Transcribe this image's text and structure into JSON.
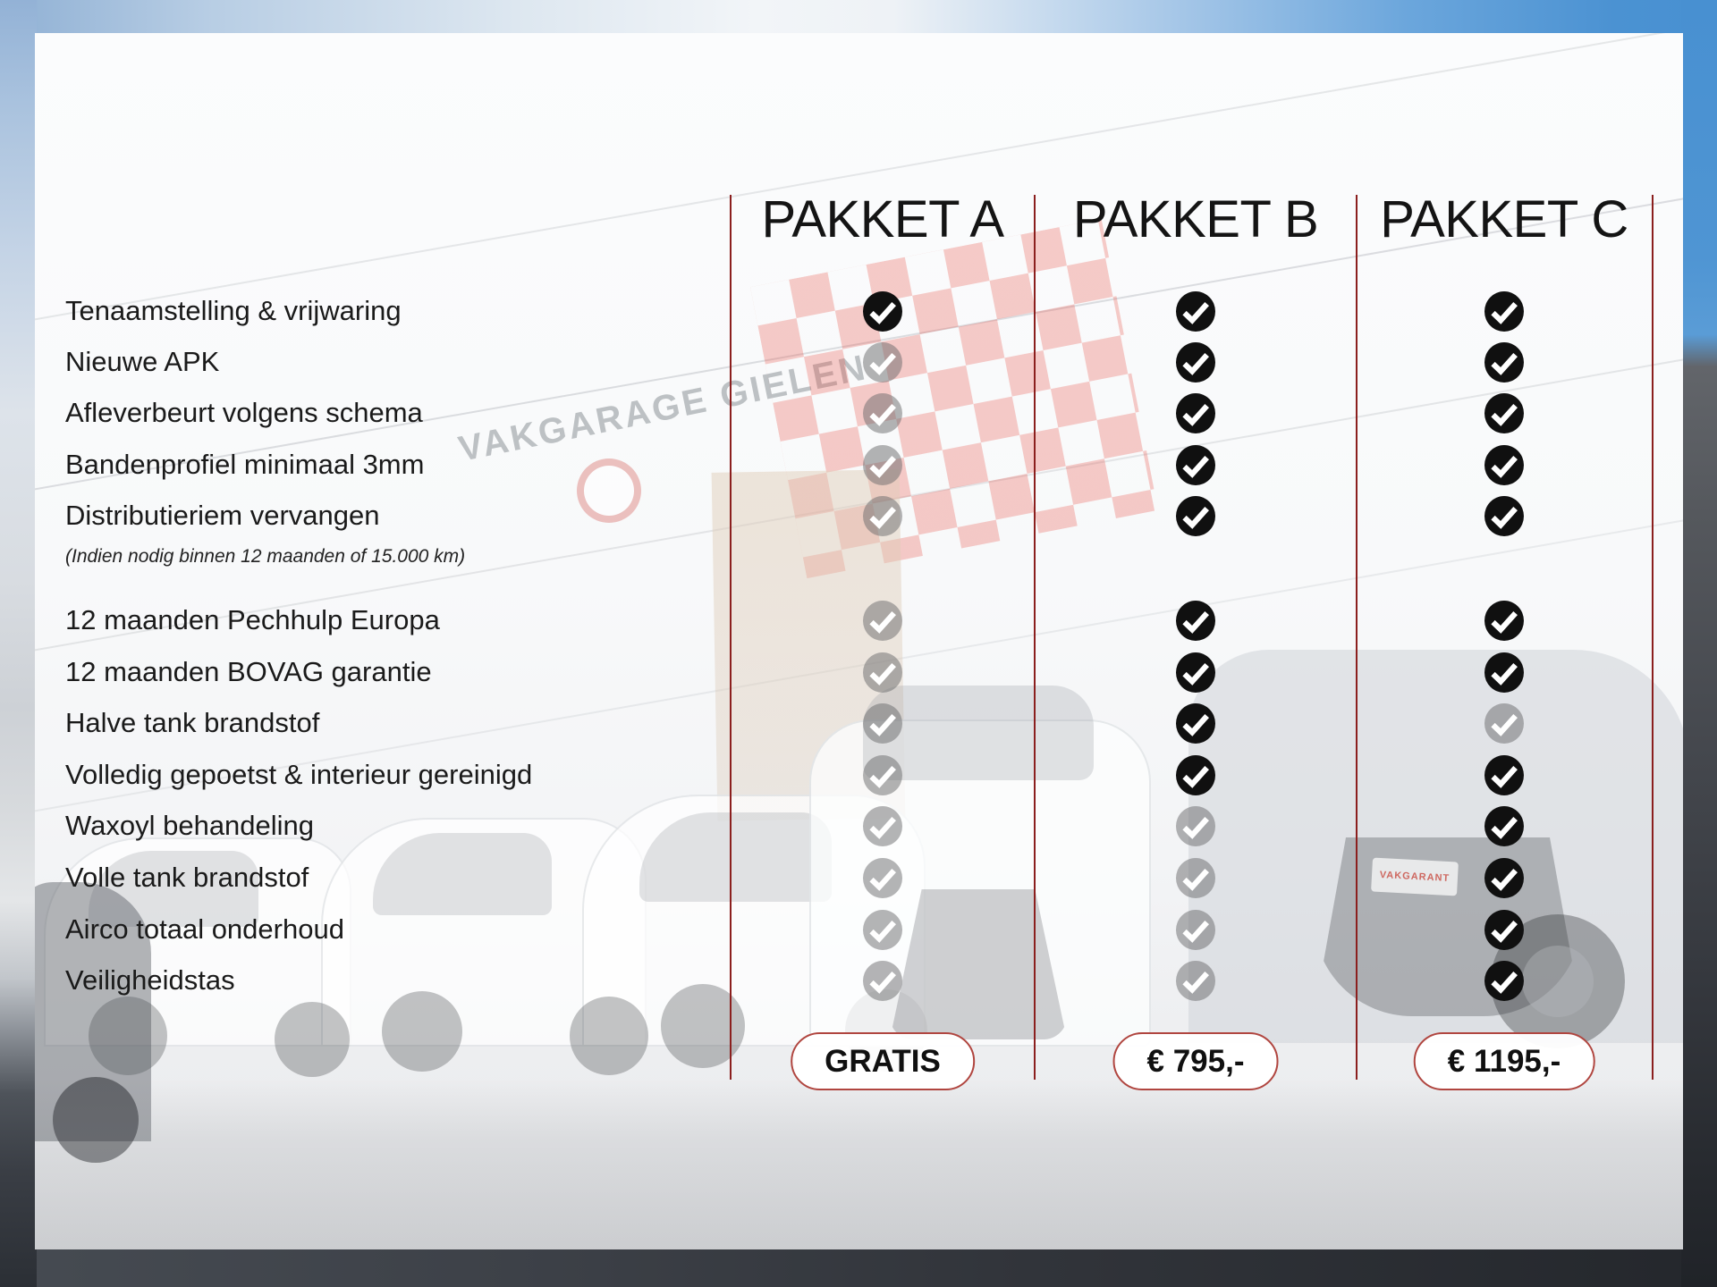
{
  "table": {
    "columns": [
      {
        "label": "PAKKET A",
        "price": "GRATIS"
      },
      {
        "label": "PAKKET B",
        "price": "€ 795,-"
      },
      {
        "label": "PAKKET C",
        "price": "€ 1195,-"
      }
    ],
    "rows": [
      {
        "label": "Tenaamstelling & vrijwaring",
        "a": true,
        "b": true,
        "c": true
      },
      {
        "label": "Nieuwe APK",
        "a": false,
        "b": true,
        "c": true
      },
      {
        "label": "Afleverbeurt volgens schema",
        "a": false,
        "b": true,
        "c": true
      },
      {
        "label": "Bandenprofiel minimaal 3mm",
        "a": false,
        "b": true,
        "c": true
      },
      {
        "label": "Distributieriem vervangen",
        "note": "(Indien nodig binnen 12 maanden of 15.000 km)",
        "a": false,
        "b": true,
        "c": true
      },
      {
        "label": "12 maanden Pechhulp Europa",
        "a": false,
        "b": true,
        "c": true
      },
      {
        "label": "12 maanden BOVAG garantie",
        "a": false,
        "b": true,
        "c": true
      },
      {
        "label": "Halve tank brandstof",
        "a": false,
        "b": true,
        "c": false
      },
      {
        "label": "Volledig gepoetst & interieur gereinigd",
        "a": false,
        "b": true,
        "c": true
      },
      {
        "label": "Waxoyl behandeling",
        "a": false,
        "b": false,
        "c": true
      },
      {
        "label": "Volle tank brandstof",
        "a": false,
        "b": false,
        "c": true
      },
      {
        "label": "Airco totaal onderhoud",
        "a": false,
        "b": false,
        "c": true
      },
      {
        "label": "Veiligheidstas",
        "a": false,
        "b": false,
        "c": true
      }
    ]
  },
  "chart_data": {
    "type": "table",
    "title": "",
    "columns": [
      "PAKKET A",
      "PAKKET B",
      "PAKKET C"
    ],
    "rows": [
      "Tenaamstelling & vrijwaring",
      "Nieuwe APK",
      "Afleverbeurt volgens schema",
      "Bandenprofiel minimaal 3mm",
      "Distributieriem vervangen (Indien nodig binnen 12 maanden of 15.000 km)",
      "12 maanden Pechhulp Europa",
      "12 maanden BOVAG garantie",
      "Halve tank brandstof",
      "Volledig gepoetst & interieur gereinigd",
      "Waxoyl behandeling",
      "Volle tank brandstof",
      "Airco totaal onderhoud",
      "Veiligheidstas"
    ],
    "values": [
      [
        true,
        true,
        true
      ],
      [
        false,
        true,
        true
      ],
      [
        false,
        true,
        true
      ],
      [
        false,
        true,
        true
      ],
      [
        false,
        true,
        true
      ],
      [
        false,
        true,
        true
      ],
      [
        false,
        true,
        true
      ],
      [
        false,
        true,
        false
      ],
      [
        false,
        true,
        true
      ],
      [
        false,
        false,
        true
      ],
      [
        false,
        false,
        true
      ],
      [
        false,
        false,
        true
      ],
      [
        false,
        false,
        true
      ]
    ],
    "footer_prices": [
      "GRATIS",
      "€ 795,-",
      "€ 1195,-"
    ],
    "value_encoding": "black check = included, gray check = not included"
  },
  "background": {
    "sign_text": "VAKGARAGE GIELEN",
    "plate_text": "VAKGARANT"
  },
  "icons": {
    "included": "check-circle-icon"
  },
  "colors": {
    "divider_red": "#8b1f1e",
    "pill_border_red": "#b0453f",
    "check_black": "#101010",
    "check_gray": "rgba(105,105,108,0.5)",
    "text": "#1a1a1a"
  }
}
